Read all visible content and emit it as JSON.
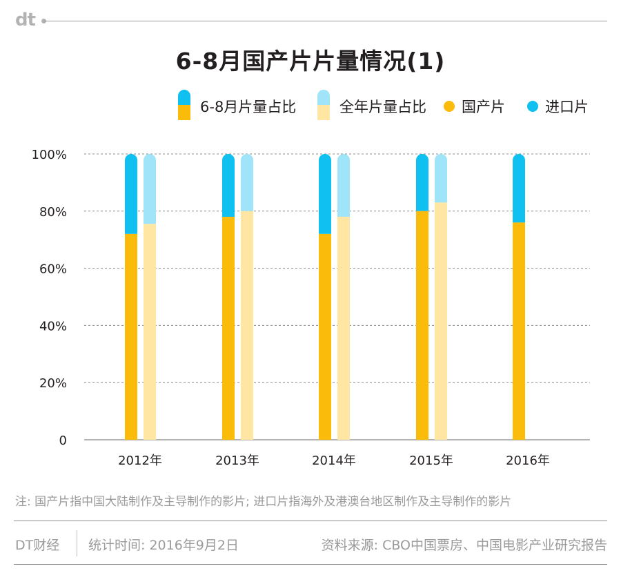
{
  "header": {
    "logo": "dt"
  },
  "colors": {
    "domestic_summer": "#fbbb0a",
    "import_summer": "#0fc0f0",
    "domestic_year": "#ffe7a3",
    "import_year": "#9fe4f8",
    "grid": "#8c8c8c"
  },
  "legend": [
    {
      "label": "6-8月片量占比",
      "kind": "stacked",
      "top_color": "#0fc0f0",
      "bottom_color": "#fbbb0a"
    },
    {
      "label": "全年片量占比",
      "kind": "stacked",
      "top_color": "#9fe4f8",
      "bottom_color": "#ffe7a3"
    },
    {
      "label": "国产片",
      "kind": "dot",
      "color": "#fbbb0a"
    },
    {
      "label": "进口片",
      "kind": "dot",
      "color": "#0fc0f0"
    }
  ],
  "chart_data": {
    "type": "bar",
    "stacked": true,
    "title": "6-8月国产片片量情况(1)",
    "categories": [
      "2012年",
      "2013年",
      "2014年",
      "2015年",
      "2016年"
    ],
    "yticks": [
      "0",
      "20%",
      "40%",
      "60%",
      "80%",
      "100%"
    ],
    "ylim": [
      0,
      100
    ],
    "grid": true,
    "legend_position": "top",
    "series": [
      {
        "name": "6-8月片量占比 国产片",
        "group": "6-8月片量占比",
        "values": [
          72,
          78,
          72,
          80,
          76
        ]
      },
      {
        "name": "6-8月片量占比 进口片",
        "group": "6-8月片量占比",
        "values": [
          28,
          22,
          28,
          20,
          24
        ]
      },
      {
        "name": "全年片量占比 国产片",
        "group": "全年片量占比",
        "values": [
          75.5,
          80,
          78,
          83,
          null
        ]
      },
      {
        "name": "全年片量占比 进口片",
        "group": "全年片量占比",
        "values": [
          24.5,
          20,
          22,
          17,
          null
        ]
      }
    ]
  },
  "footer": {
    "note": "注: 国产片指中国大陆制作及主导制作的影片; 进口片指海外及港澳台地区制作及主导制作的影片",
    "brand": "DT财经",
    "date": "统计时间: 2016年9月2日",
    "source": "资料来源: CBO中国票房、中国电影产业研究报告"
  }
}
